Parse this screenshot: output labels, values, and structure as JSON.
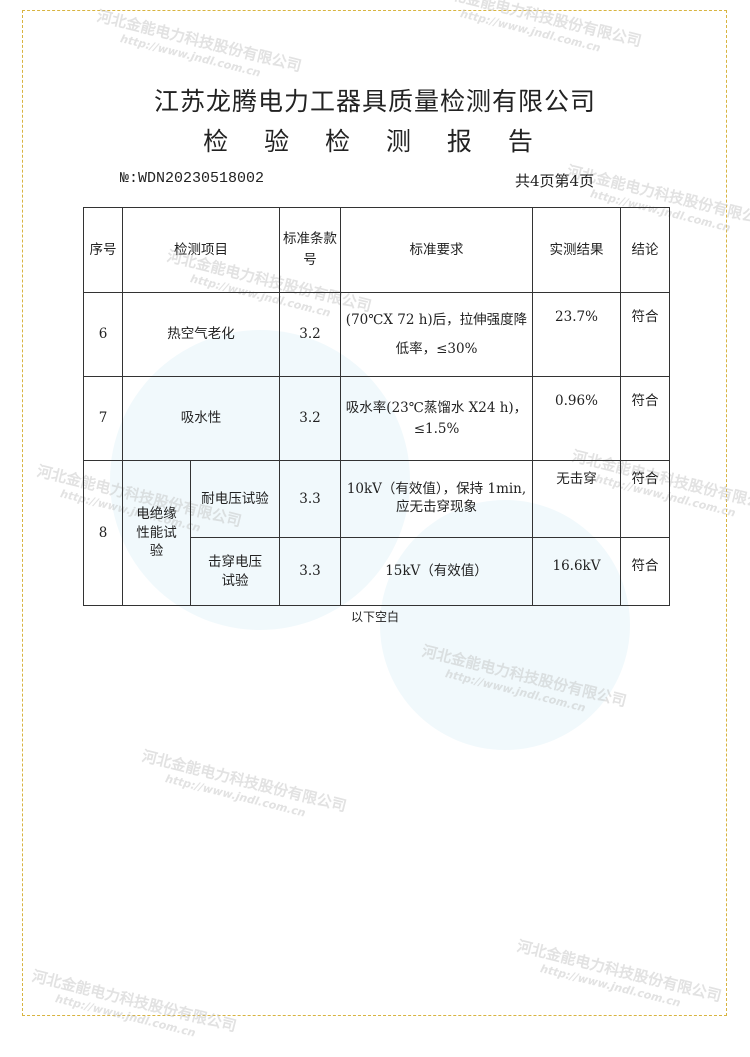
{
  "header": {
    "company": "江苏龙腾电力工器具质量检测有限公司",
    "title": "检 验 检 测 报 告",
    "report_no": "№:WDN20230518002",
    "page_info": "共4页第4页"
  },
  "table": {
    "headers": {
      "seq": "序号",
      "item": "检测项目",
      "clause": "标准条款号",
      "requirement": "标准要求",
      "result": "实测结果",
      "conclusion": "结论"
    },
    "rows": [
      {
        "seq": "6",
        "item": "热空气老化",
        "clause": "3.2",
        "requirement": "(70℃X 72 h)后，拉伸强度降低率，≤30%",
        "result": "23.7%",
        "conclusion": "符合"
      },
      {
        "seq": "7",
        "item": "吸水性",
        "clause": "3.2",
        "requirement": "吸水率(23℃蒸馏水 X24 h)，≤1.5%",
        "result": "0.96%",
        "conclusion": "符合"
      },
      {
        "seq": "8",
        "item": "电绝缘性能试验",
        "sub": [
          {
            "item": "耐电压试验",
            "clause": "3.3",
            "requirement": "10kV（有效值），保持 1min,应无击穿现象",
            "result": "无击穿",
            "conclusion": "符合"
          },
          {
            "item": "击穿电压试验",
            "clause": "3.3",
            "requirement": "15kV（有效值）",
            "result": "16.6kV",
            "conclusion": "符合"
          }
        ]
      }
    ]
  },
  "footer_note": "以下空白",
  "watermark": {
    "company": "河北金能电力科技股份有限公司",
    "url": "http://www.jndl.com.cn"
  },
  "colors": {
    "frame": "#d8b440",
    "watermark": "#bebebe"
  }
}
